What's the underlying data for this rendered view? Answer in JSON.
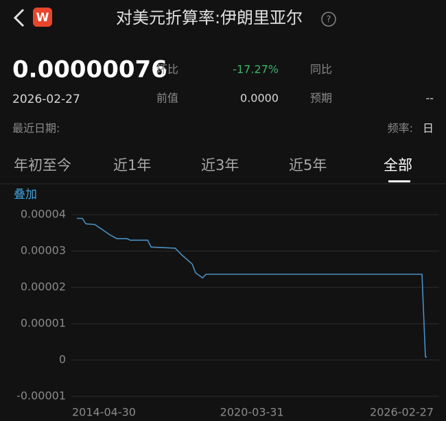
{
  "header": {
    "app_icon": "W",
    "title": "对美元折算率:伊朗里亚尔"
  },
  "summary": {
    "value": "0.00000076",
    "date": "2026-02-27",
    "stats": [
      {
        "label": "环比",
        "value": "-17.27%"
      },
      {
        "label": "同比"
      },
      {
        "label": "前值",
        "value": "0.0000"
      },
      {
        "label": "预期",
        "value": "--"
      }
    ],
    "latest_date_label": "最近日期:",
    "frequency_label": "频率:",
    "frequency": "日"
  },
  "tabs": {
    "items": [
      "年初至今",
      "近1年",
      "近3年",
      "近5年",
      "全部"
    ],
    "selected": 4
  },
  "overlay_label": "叠加",
  "chart_data": {
    "type": "line",
    "x": [
      "2014-04-30",
      "2014-07-07",
      "2014-08-18",
      "2014-12-07",
      "2015-03-18",
      "2015-06-10",
      "2015-09-05",
      "2016-01-08",
      "2016-02-20",
      "2016-09-20",
      "2016-11-02",
      "2017-08-25",
      "2017-11-18",
      "2018-03-25",
      "2018-05-05",
      "2018-07-30",
      "2018-09-10",
      "2025-12-30",
      "2026-02-10",
      "2026-02-27"
    ],
    "series": [
      {
        "color": "#4a90c2",
        "values": [
          3.9e-05,
          3.9e-05,
          3.75e-05,
          3.73e-05,
          3.58e-05,
          3.45e-05,
          3.34e-05,
          3.34e-05,
          3.3e-05,
          3.3e-05,
          3.11e-05,
          3.08e-05,
          2.89e-05,
          2.64e-05,
          2.4e-05,
          2.26e-05,
          2.36e-05,
          2.36e-05,
          9e-07,
          7.6e-07
        ]
      }
    ],
    "xlim": [
      "2014-04-30",
      "2026-02-27"
    ],
    "xticks": [
      "2014-04-30",
      "2020-03-31",
      "2026-02-27"
    ],
    "ylim": [
      -1e-05,
      4.4e-05
    ],
    "yticks": [
      -1e-05,
      0,
      1e-05,
      2e-05,
      3e-05,
      4e-05
    ],
    "grid": true
  }
}
